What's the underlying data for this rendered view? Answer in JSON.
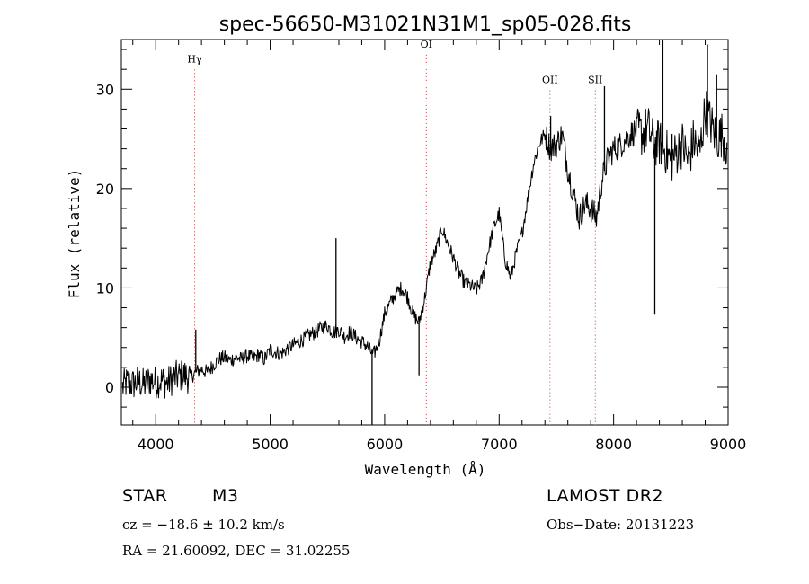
{
  "chart_data": {
    "type": "line",
    "title": "spec-56650-M31021N31M1_sp05-028.fits",
    "xlabel": "Wavelength (Å)",
    "ylabel": "Flux (relative)",
    "xlim": [
      3700,
      9000
    ],
    "ylim": [
      -3.8,
      35
    ],
    "x_ticks": [
      4000,
      5000,
      6000,
      7000,
      8000,
      9000
    ],
    "x_tick_labels": [
      "4000",
      "5000",
      "6000",
      "7000",
      "8000",
      "9000"
    ],
    "y_ticks": [
      0,
      10,
      20,
      30
    ],
    "y_tick_labels": [
      "0",
      "10",
      "20",
      "30"
    ],
    "grid": false,
    "line_color": "#000000",
    "marker_color": "#cc3333",
    "series": [
      {
        "x": [
          3710,
          3750,
          3800,
          3850,
          3900,
          3950,
          4000,
          4050,
          4100,
          4150,
          4200,
          4250,
          4300,
          4350,
          4400,
          4450,
          4500,
          4550,
          4600,
          4650,
          4700,
          4750,
          4800,
          4850,
          4900,
          4950,
          5000,
          5050,
          5100,
          5150,
          5200,
          5250,
          5300,
          5350,
          5400,
          5450,
          5500,
          5550,
          5600,
          5650,
          5700,
          5750,
          5800,
          5850,
          5900,
          5950,
          6000,
          6050,
          6100,
          6150,
          6200,
          6250,
          6300,
          6350,
          6400,
          6450,
          6500,
          6550,
          6600,
          6650,
          6700,
          6750,
          6800,
          6850,
          6900,
          6950,
          7000,
          7050,
          7100,
          7150,
          7200,
          7250,
          7300,
          7350,
          7400,
          7450,
          7500,
          7550,
          7600,
          7650,
          7700,
          7750,
          7800,
          7850,
          7900,
          7950,
          8000,
          8050,
          8100,
          8150,
          8200,
          8250,
          8300,
          8350,
          8400,
          8450,
          8500,
          8550,
          8600,
          8650,
          8700,
          8750,
          8800,
          8850,
          8900,
          8950,
          8990
        ],
        "y": [
          0.0,
          0.5,
          0.3,
          0.6,
          0.2,
          0.8,
          0.5,
          0.7,
          0.4,
          0.9,
          1.1,
          1.2,
          1.0,
          1.5,
          1.8,
          1.5,
          2.2,
          2.8,
          3.0,
          2.7,
          3.0,
          2.8,
          3.2,
          2.9,
          3.3,
          2.8,
          3.8,
          3.5,
          3.4,
          3.9,
          4.2,
          4.6,
          4.9,
          5.3,
          5.6,
          6.0,
          6.2,
          5.5,
          5.8,
          5.1,
          5.6,
          5.0,
          4.6,
          4.1,
          3.2,
          4.5,
          7.4,
          8.5,
          9.5,
          10.0,
          9.1,
          7.3,
          6.5,
          9.0,
          12.5,
          13.8,
          16.0,
          14.5,
          13.0,
          11.5,
          10.5,
          10.2,
          9.8,
          10.8,
          13.5,
          16.0,
          17.5,
          13.0,
          11.0,
          13.5,
          15.5,
          19.0,
          22.5,
          24.5,
          25.5,
          24.0,
          24.5,
          25.5,
          22.0,
          19.5,
          17.0,
          18.5,
          18.0,
          17.0,
          21.0,
          23.0,
          24.0,
          24.3,
          24.9,
          25.5,
          25.8,
          25.5,
          26.1,
          24.5,
          24.6,
          23.9,
          22.8,
          23.6,
          24.5,
          22.8,
          24.9,
          23.5,
          28.0,
          26.5,
          25.0,
          25.5,
          24.2
        ]
      }
    ],
    "spikes": [
      {
        "x": 4350,
        "y": 5.8
      },
      {
        "x": 5575,
        "y": 15.0
      },
      {
        "x": 5890,
        "y": -3.8
      },
      {
        "x": 6300,
        "y": 1.2
      },
      {
        "x": 7450,
        "y": 27.3
      },
      {
        "x": 7920,
        "y": 30.3
      },
      {
        "x": 8360,
        "y": 7.3
      },
      {
        "x": 8430,
        "y": 35.0
      },
      {
        "x": 8510,
        "y": 25.5
      },
      {
        "x": 8820,
        "y": 34.5
      },
      {
        "x": 8900,
        "y": 31.5
      }
    ],
    "annotations": [
      {
        "text": "Hγ",
        "x": 4340,
        "y": 32.7
      },
      {
        "text": "OI",
        "x": 6364,
        "y": 34.2
      },
      {
        "text": "OII",
        "x": 7444,
        "y": 30.6
      },
      {
        "text": "SII",
        "x": 7840,
        "y": 30.6
      }
    ]
  },
  "info": {
    "object_class": "STAR",
    "subclass": "M3",
    "survey": "LAMOST DR2",
    "cz": "cz = −18.6 ± 10.2 km/s",
    "obs_date": "Obs−Date: 20131223",
    "coords": "RA =  21.60092, DEC =  31.02255"
  }
}
